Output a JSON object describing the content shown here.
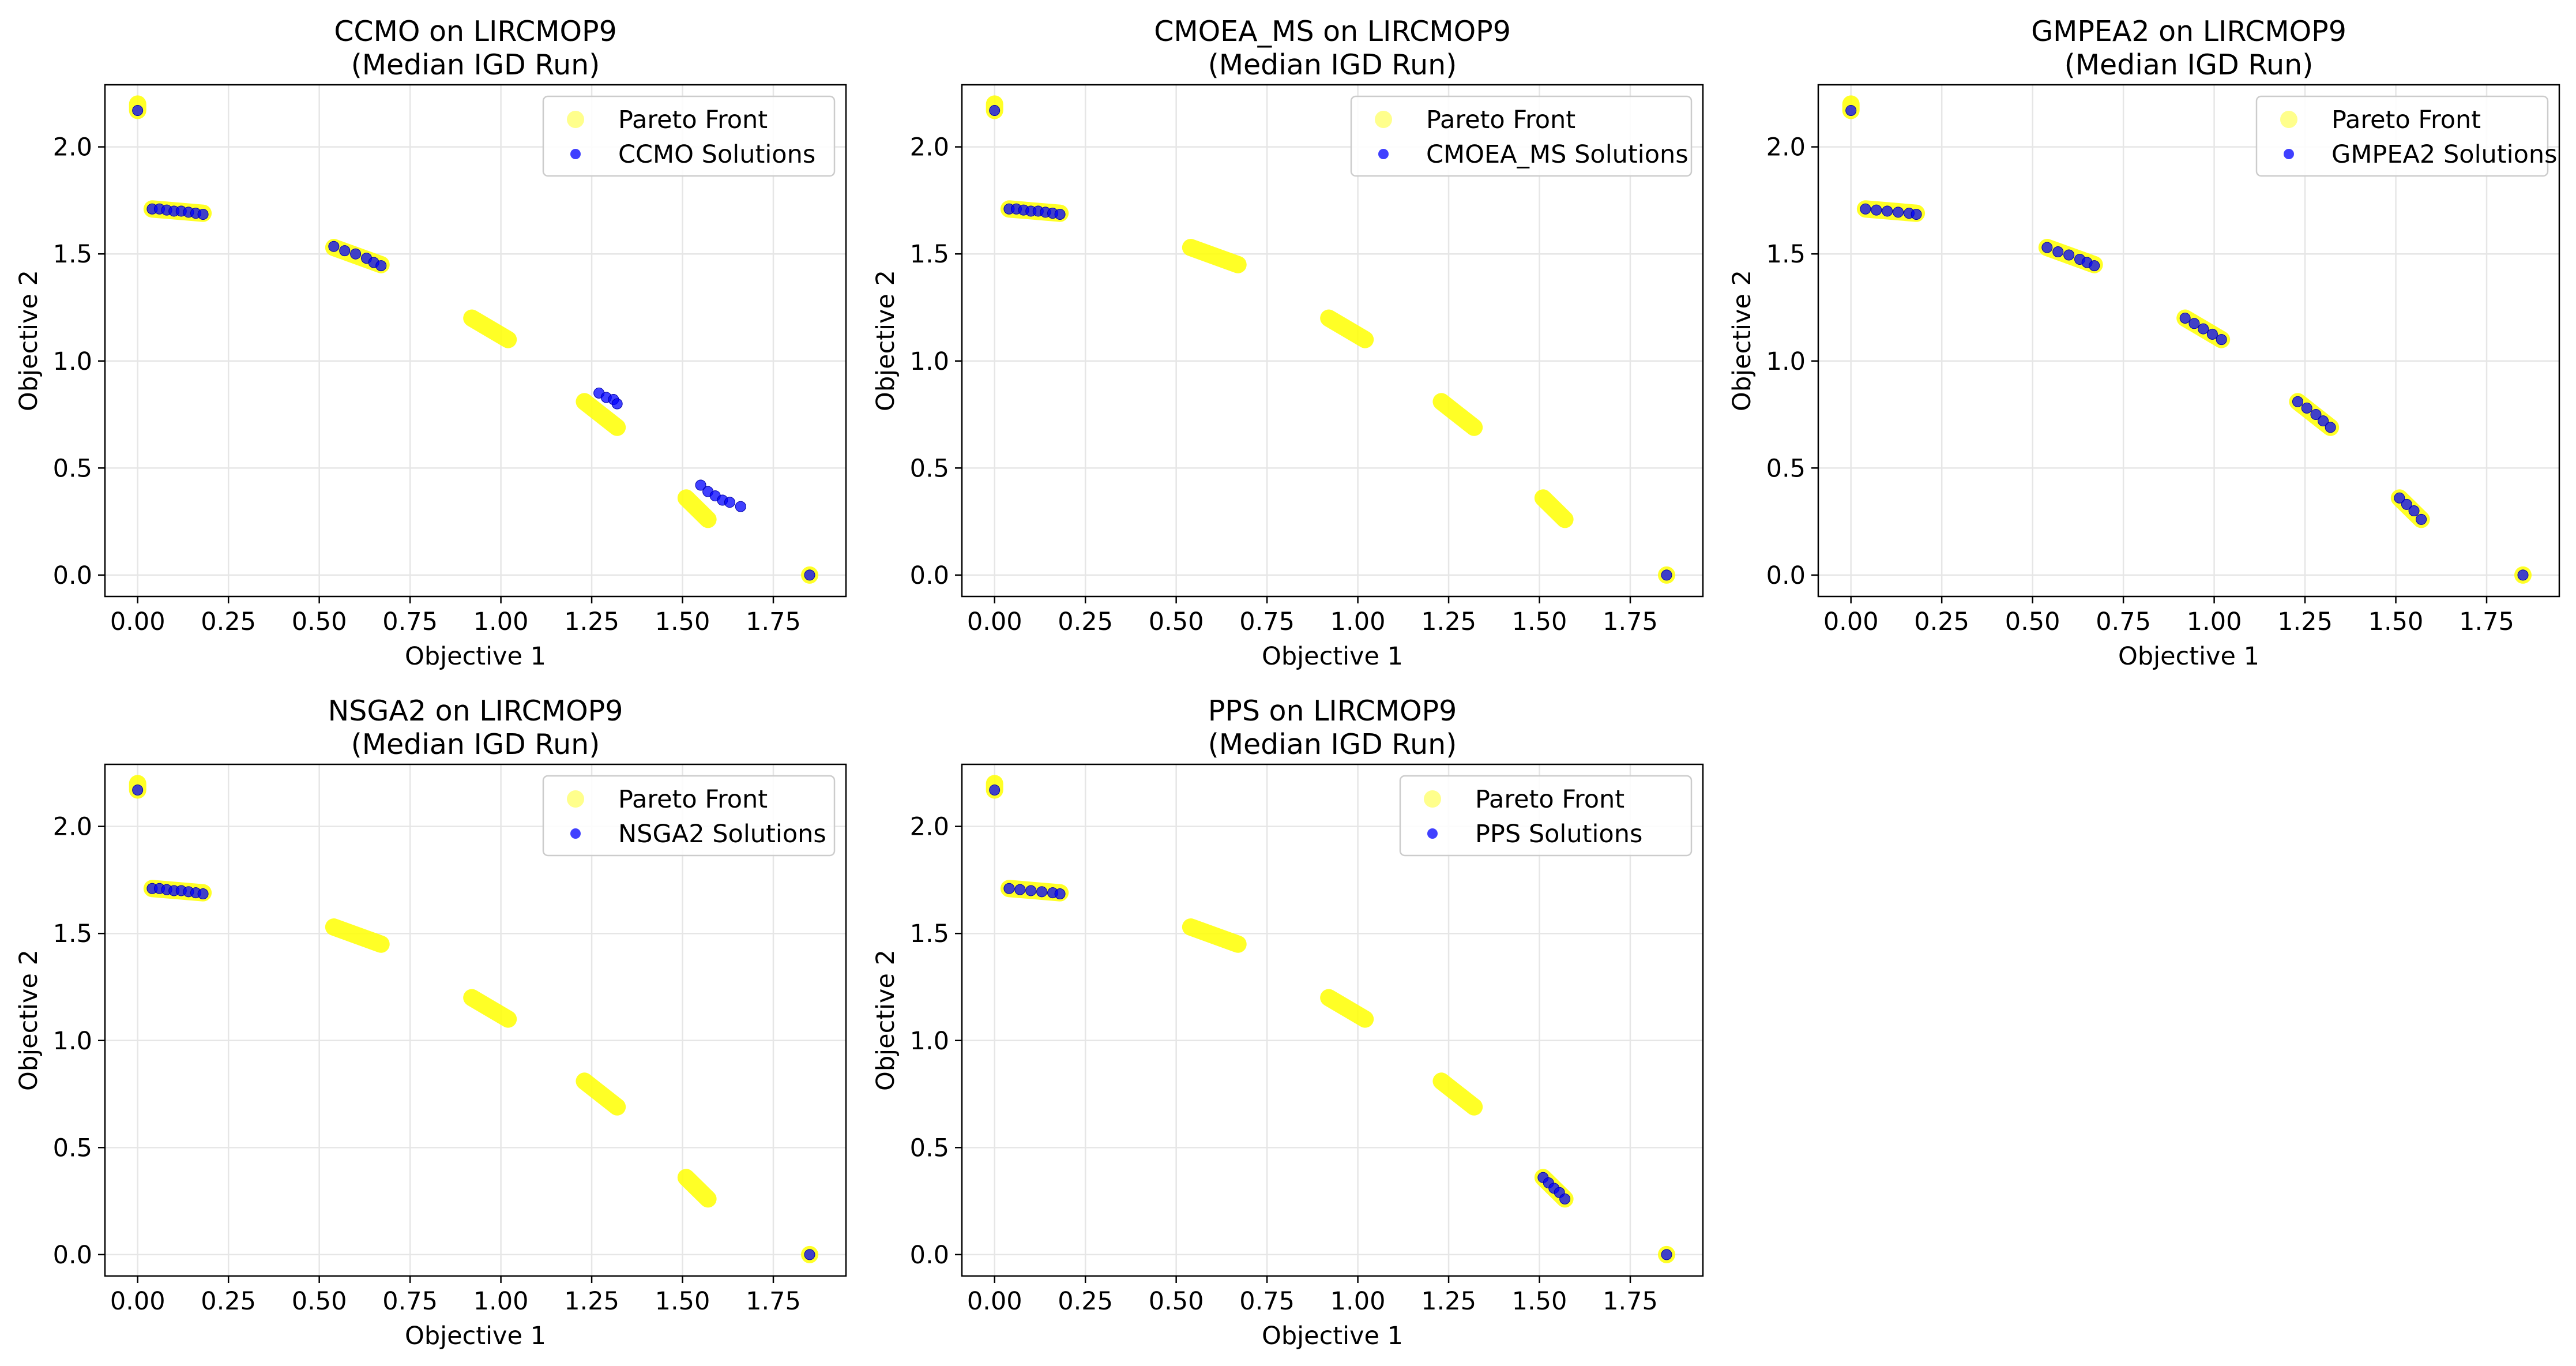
{
  "figure": {
    "background": "#ffffff",
    "pareto_color": "#ffff00",
    "solution_color": "#0000ff",
    "grid_color": "#e6e6e6"
  },
  "chart_data": [
    {
      "type": "scatter",
      "title_line1": "CCMO on LIRCMOP9",
      "title_line2": "(Median IGD Run)",
      "xlabel": "Objective 1",
      "ylabel": "Objective 2",
      "xlim": [
        -0.09,
        1.95
      ],
      "ylim": [
        -0.1,
        2.29
      ],
      "xticks": [
        0.0,
        0.25,
        0.5,
        0.75,
        1.0,
        1.25,
        1.5,
        1.75
      ],
      "xtick_labels": [
        "0.00",
        "0.25",
        "0.50",
        "0.75",
        "1.00",
        "1.25",
        "1.50",
        "1.75"
      ],
      "yticks": [
        0.0,
        0.5,
        1.0,
        1.5,
        2.0
      ],
      "ytick_labels": [
        "0.0",
        "0.5",
        "1.0",
        "1.5",
        "2.0"
      ],
      "grid": true,
      "legend_position": "top-right",
      "legend": [
        "Pareto Front",
        "CCMO Solutions"
      ],
      "pareto_front": [
        {
          "x": [
            0.0,
            0.0
          ],
          "y": [
            2.2,
            2.17
          ]
        },
        {
          "x": [
            0.04,
            0.18
          ],
          "y": [
            1.71,
            1.69
          ]
        },
        {
          "x": [
            0.54,
            0.67
          ],
          "y": [
            1.53,
            1.45
          ]
        },
        {
          "x": [
            0.92,
            1.02
          ],
          "y": [
            1.2,
            1.1
          ]
        },
        {
          "x": [
            1.23,
            1.32
          ],
          "y": [
            0.81,
            0.69
          ]
        },
        {
          "x": [
            1.51,
            1.57
          ],
          "y": [
            0.36,
            0.26
          ]
        },
        {
          "x": [
            1.85,
            1.85
          ],
          "y": [
            0.0,
            0.0
          ]
        }
      ],
      "solutions": [
        {
          "x": 0.0,
          "y": 2.17
        },
        {
          "x": 0.04,
          "y": 1.71
        },
        {
          "x": 0.06,
          "y": 1.71
        },
        {
          "x": 0.08,
          "y": 1.705
        },
        {
          "x": 0.1,
          "y": 1.7
        },
        {
          "x": 0.12,
          "y": 1.7
        },
        {
          "x": 0.14,
          "y": 1.695
        },
        {
          "x": 0.16,
          "y": 1.69
        },
        {
          "x": 0.18,
          "y": 1.685
        },
        {
          "x": 0.54,
          "y": 1.535
        },
        {
          "x": 0.57,
          "y": 1.515
        },
        {
          "x": 0.6,
          "y": 1.5
        },
        {
          "x": 0.63,
          "y": 1.48
        },
        {
          "x": 0.65,
          "y": 1.46
        },
        {
          "x": 0.67,
          "y": 1.445
        },
        {
          "x": 1.27,
          "y": 0.85
        },
        {
          "x": 1.29,
          "y": 0.83
        },
        {
          "x": 1.31,
          "y": 0.82
        },
        {
          "x": 1.32,
          "y": 0.8
        },
        {
          "x": 1.55,
          "y": 0.42
        },
        {
          "x": 1.57,
          "y": 0.39
        },
        {
          "x": 1.59,
          "y": 0.37
        },
        {
          "x": 1.61,
          "y": 0.35
        },
        {
          "x": 1.63,
          "y": 0.34
        },
        {
          "x": 1.66,
          "y": 0.32
        },
        {
          "x": 1.85,
          "y": 0.0
        }
      ]
    },
    {
      "type": "scatter",
      "title_line1": "CMOEA_MS on LIRCMOP9",
      "title_line2": "(Median IGD Run)",
      "xlabel": "Objective 1",
      "ylabel": "Objective 2",
      "xlim": [
        -0.09,
        1.95
      ],
      "ylim": [
        -0.1,
        2.29
      ],
      "xticks": [
        0.0,
        0.25,
        0.5,
        0.75,
        1.0,
        1.25,
        1.5,
        1.75
      ],
      "xtick_labels": [
        "0.00",
        "0.25",
        "0.50",
        "0.75",
        "1.00",
        "1.25",
        "1.50",
        "1.75"
      ],
      "yticks": [
        0.0,
        0.5,
        1.0,
        1.5,
        2.0
      ],
      "ytick_labels": [
        "0.0",
        "0.5",
        "1.0",
        "1.5",
        "2.0"
      ],
      "grid": true,
      "legend_position": "top-right",
      "legend": [
        "Pareto Front",
        "CMOEA_MS Solutions"
      ],
      "pareto_front": [
        {
          "x": [
            0.0,
            0.0
          ],
          "y": [
            2.2,
            2.17
          ]
        },
        {
          "x": [
            0.04,
            0.18
          ],
          "y": [
            1.71,
            1.69
          ]
        },
        {
          "x": [
            0.54,
            0.67
          ],
          "y": [
            1.53,
            1.45
          ]
        },
        {
          "x": [
            0.92,
            1.02
          ],
          "y": [
            1.2,
            1.1
          ]
        },
        {
          "x": [
            1.23,
            1.32
          ],
          "y": [
            0.81,
            0.69
          ]
        },
        {
          "x": [
            1.51,
            1.57
          ],
          "y": [
            0.36,
            0.26
          ]
        },
        {
          "x": [
            1.85,
            1.85
          ],
          "y": [
            0.0,
            0.0
          ]
        }
      ],
      "solutions": [
        {
          "x": 0.0,
          "y": 2.17
        },
        {
          "x": 0.04,
          "y": 1.71
        },
        {
          "x": 0.06,
          "y": 1.71
        },
        {
          "x": 0.08,
          "y": 1.705
        },
        {
          "x": 0.1,
          "y": 1.7
        },
        {
          "x": 0.12,
          "y": 1.7
        },
        {
          "x": 0.14,
          "y": 1.695
        },
        {
          "x": 0.16,
          "y": 1.69
        },
        {
          "x": 0.18,
          "y": 1.685
        },
        {
          "x": 1.85,
          "y": 0.0
        }
      ]
    },
    {
      "type": "scatter",
      "title_line1": "GMPEA2 on LIRCMOP9",
      "title_line2": "(Median IGD Run)",
      "xlabel": "Objective 1",
      "ylabel": "Objective 2",
      "xlim": [
        -0.09,
        1.95
      ],
      "ylim": [
        -0.1,
        2.29
      ],
      "xticks": [
        0.0,
        0.25,
        0.5,
        0.75,
        1.0,
        1.25,
        1.5,
        1.75
      ],
      "xtick_labels": [
        "0.00",
        "0.25",
        "0.50",
        "0.75",
        "1.00",
        "1.25",
        "1.50",
        "1.75"
      ],
      "yticks": [
        0.0,
        0.5,
        1.0,
        1.5,
        2.0
      ],
      "ytick_labels": [
        "0.0",
        "0.5",
        "1.0",
        "1.5",
        "2.0"
      ],
      "grid": true,
      "legend_position": "top-right",
      "legend": [
        "Pareto Front",
        "GMPEA2 Solutions"
      ],
      "pareto_front": [
        {
          "x": [
            0.0,
            0.0
          ],
          "y": [
            2.2,
            2.17
          ]
        },
        {
          "x": [
            0.04,
            0.18
          ],
          "y": [
            1.71,
            1.69
          ]
        },
        {
          "x": [
            0.54,
            0.67
          ],
          "y": [
            1.53,
            1.45
          ]
        },
        {
          "x": [
            0.92,
            1.02
          ],
          "y": [
            1.2,
            1.1
          ]
        },
        {
          "x": [
            1.23,
            1.32
          ],
          "y": [
            0.81,
            0.69
          ]
        },
        {
          "x": [
            1.51,
            1.57
          ],
          "y": [
            0.36,
            0.26
          ]
        },
        {
          "x": [
            1.85,
            1.85
          ],
          "y": [
            0.0,
            0.0
          ]
        }
      ],
      "solutions": [
        {
          "x": 0.0,
          "y": 2.17
        },
        {
          "x": 0.04,
          "y": 1.71
        },
        {
          "x": 0.07,
          "y": 1.705
        },
        {
          "x": 0.1,
          "y": 1.7
        },
        {
          "x": 0.13,
          "y": 1.695
        },
        {
          "x": 0.16,
          "y": 1.69
        },
        {
          "x": 0.18,
          "y": 1.685
        },
        {
          "x": 0.54,
          "y": 1.53
        },
        {
          "x": 0.57,
          "y": 1.51
        },
        {
          "x": 0.6,
          "y": 1.495
        },
        {
          "x": 0.63,
          "y": 1.475
        },
        {
          "x": 0.65,
          "y": 1.46
        },
        {
          "x": 0.67,
          "y": 1.445
        },
        {
          "x": 0.92,
          "y": 1.2
        },
        {
          "x": 0.945,
          "y": 1.175
        },
        {
          "x": 0.97,
          "y": 1.15
        },
        {
          "x": 0.995,
          "y": 1.125
        },
        {
          "x": 1.02,
          "y": 1.1
        },
        {
          "x": 1.23,
          "y": 0.81
        },
        {
          "x": 1.255,
          "y": 0.78
        },
        {
          "x": 1.28,
          "y": 0.75
        },
        {
          "x": 1.3,
          "y": 0.72
        },
        {
          "x": 1.32,
          "y": 0.69
        },
        {
          "x": 1.51,
          "y": 0.36
        },
        {
          "x": 1.53,
          "y": 0.33
        },
        {
          "x": 1.55,
          "y": 0.3
        },
        {
          "x": 1.57,
          "y": 0.26
        },
        {
          "x": 1.85,
          "y": 0.0
        }
      ]
    },
    {
      "type": "scatter",
      "title_line1": "NSGA2 on LIRCMOP9",
      "title_line2": "(Median IGD Run)",
      "xlabel": "Objective 1",
      "ylabel": "Objective 2",
      "xlim": [
        -0.09,
        1.95
      ],
      "ylim": [
        -0.1,
        2.29
      ],
      "xticks": [
        0.0,
        0.25,
        0.5,
        0.75,
        1.0,
        1.25,
        1.5,
        1.75
      ],
      "xtick_labels": [
        "0.00",
        "0.25",
        "0.50",
        "0.75",
        "1.00",
        "1.25",
        "1.50",
        "1.75"
      ],
      "yticks": [
        0.0,
        0.5,
        1.0,
        1.5,
        2.0
      ],
      "ytick_labels": [
        "0.0",
        "0.5",
        "1.0",
        "1.5",
        "2.0"
      ],
      "grid": true,
      "legend_position": "top-right",
      "legend": [
        "Pareto Front",
        "NSGA2 Solutions"
      ],
      "pareto_front": [
        {
          "x": [
            0.0,
            0.0
          ],
          "y": [
            2.2,
            2.17
          ]
        },
        {
          "x": [
            0.04,
            0.18
          ],
          "y": [
            1.71,
            1.69
          ]
        },
        {
          "x": [
            0.54,
            0.67
          ],
          "y": [
            1.53,
            1.45
          ]
        },
        {
          "x": [
            0.92,
            1.02
          ],
          "y": [
            1.2,
            1.1
          ]
        },
        {
          "x": [
            1.23,
            1.32
          ],
          "y": [
            0.81,
            0.69
          ]
        },
        {
          "x": [
            1.51,
            1.57
          ],
          "y": [
            0.36,
            0.26
          ]
        },
        {
          "x": [
            1.85,
            1.85
          ],
          "y": [
            0.0,
            0.0
          ]
        }
      ],
      "solutions": [
        {
          "x": 0.0,
          "y": 2.17
        },
        {
          "x": 0.04,
          "y": 1.71
        },
        {
          "x": 0.06,
          "y": 1.71
        },
        {
          "x": 0.08,
          "y": 1.705
        },
        {
          "x": 0.1,
          "y": 1.7
        },
        {
          "x": 0.12,
          "y": 1.7
        },
        {
          "x": 0.14,
          "y": 1.695
        },
        {
          "x": 0.16,
          "y": 1.69
        },
        {
          "x": 0.18,
          "y": 1.685
        },
        {
          "x": 1.85,
          "y": 0.0
        }
      ]
    },
    {
      "type": "scatter",
      "title_line1": "PPS on LIRCMOP9",
      "title_line2": "(Median IGD Run)",
      "xlabel": "Objective 1",
      "ylabel": "Objective 2",
      "xlim": [
        -0.09,
        1.95
      ],
      "ylim": [
        -0.1,
        2.29
      ],
      "xticks": [
        0.0,
        0.25,
        0.5,
        0.75,
        1.0,
        1.25,
        1.5,
        1.75
      ],
      "xtick_labels": [
        "0.00",
        "0.25",
        "0.50",
        "0.75",
        "1.00",
        "1.25",
        "1.50",
        "1.75"
      ],
      "yticks": [
        0.0,
        0.5,
        1.0,
        1.5,
        2.0
      ],
      "ytick_labels": [
        "0.0",
        "0.5",
        "1.0",
        "1.5",
        "2.0"
      ],
      "grid": true,
      "legend_position": "top-right",
      "legend": [
        "Pareto Front",
        "PPS Solutions"
      ],
      "pareto_front": [
        {
          "x": [
            0.0,
            0.0
          ],
          "y": [
            2.2,
            2.17
          ]
        },
        {
          "x": [
            0.04,
            0.18
          ],
          "y": [
            1.71,
            1.69
          ]
        },
        {
          "x": [
            0.54,
            0.67
          ],
          "y": [
            1.53,
            1.45
          ]
        },
        {
          "x": [
            0.92,
            1.02
          ],
          "y": [
            1.2,
            1.1
          ]
        },
        {
          "x": [
            1.23,
            1.32
          ],
          "y": [
            0.81,
            0.69
          ]
        },
        {
          "x": [
            1.51,
            1.57
          ],
          "y": [
            0.36,
            0.26
          ]
        },
        {
          "x": [
            1.85,
            1.85
          ],
          "y": [
            0.0,
            0.0
          ]
        }
      ],
      "solutions": [
        {
          "x": 0.0,
          "y": 2.17
        },
        {
          "x": 0.04,
          "y": 1.71
        },
        {
          "x": 0.07,
          "y": 1.705
        },
        {
          "x": 0.1,
          "y": 1.7
        },
        {
          "x": 0.13,
          "y": 1.695
        },
        {
          "x": 0.16,
          "y": 1.69
        },
        {
          "x": 0.18,
          "y": 1.685
        },
        {
          "x": 1.51,
          "y": 0.36
        },
        {
          "x": 1.525,
          "y": 0.335
        },
        {
          "x": 1.54,
          "y": 0.31
        },
        {
          "x": 1.555,
          "y": 0.29
        },
        {
          "x": 1.57,
          "y": 0.26
        },
        {
          "x": 1.85,
          "y": 0.0
        }
      ]
    }
  ]
}
